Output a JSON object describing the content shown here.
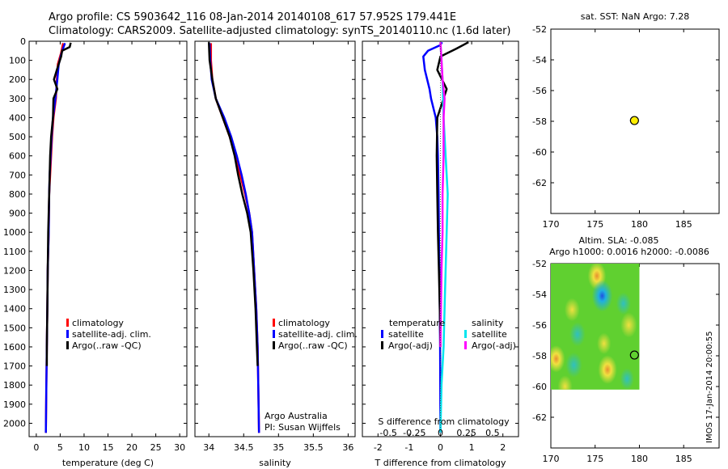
{
  "header": {
    "line1": "Argo profile: CS 5903642_116 08-Jan-2014 20140108_617 57.952S 179.441E",
    "line2": "Climatology: CARS2009. Satellite-adjusted climatology: synTS_20140110.nc (1.6d later)"
  },
  "credit": "IMOS 17-Jan-2014 20:00:55",
  "colors": {
    "climatology": "#ff0000",
    "satellite": "#0000ff",
    "argo": "#000000",
    "satellite_s": "#00e5ee",
    "argo_s": "#ff00ff"
  },
  "depth_ticks": [
    0,
    100,
    200,
    300,
    400,
    500,
    600,
    700,
    800,
    900,
    1000,
    1100,
    1200,
    1300,
    1400,
    1500,
    1600,
    1700,
    1800,
    1900,
    2000
  ],
  "chart_data": [
    {
      "type": "line",
      "id": "temperature",
      "xlabel": "temperature (deg C)",
      "xlim": [
        -1.5,
        31.5
      ],
      "ylim": [
        2070,
        0
      ],
      "xticks": [
        0,
        5,
        10,
        15,
        20,
        25,
        30
      ],
      "legend": [
        "climatology",
        "satellite-adj. clim.",
        "Argo(..raw -QC)"
      ],
      "series": [
        {
          "name": "climatology",
          "color": "#ff0000",
          "points": [
            [
              5.6,
              10
            ],
            [
              5.2,
              60
            ],
            [
              4.5,
              120
            ],
            [
              4.3,
              200
            ],
            [
              4.1,
              300
            ],
            [
              3.6,
              400
            ],
            [
              3.3,
              500
            ],
            [
              3.1,
              600
            ],
            [
              2.9,
              700
            ],
            [
              2.7,
              800
            ],
            [
              2.6,
              1000
            ],
            [
              2.4,
              1200
            ],
            [
              2.3,
              1400
            ],
            [
              2.2,
              1600
            ],
            [
              2.1,
              1800
            ],
            [
              2.0,
              2050
            ]
          ]
        },
        {
          "name": "satellite-adj. clim.",
          "color": "#0000ff",
          "points": [
            [
              6.0,
              10
            ],
            [
              5.3,
              60
            ],
            [
              4.7,
              120
            ],
            [
              4.4,
              200
            ],
            [
              4.0,
              300
            ],
            [
              3.5,
              400
            ],
            [
              3.2,
              500
            ],
            [
              3.0,
              600
            ],
            [
              2.8,
              700
            ],
            [
              2.7,
              800
            ],
            [
              2.6,
              1000
            ],
            [
              2.4,
              1200
            ],
            [
              2.3,
              1400
            ],
            [
              2.2,
              1600
            ],
            [
              2.1,
              1800
            ],
            [
              2.0,
              2050
            ]
          ]
        },
        {
          "name": "Argo(..raw -QC)",
          "color": "#000000",
          "points": [
            [
              7.2,
              8
            ],
            [
              7.0,
              30
            ],
            [
              5.4,
              50
            ],
            [
              5.2,
              80
            ],
            [
              4.3,
              150
            ],
            [
              3.7,
              200
            ],
            [
              4.4,
              250
            ],
            [
              3.6,
              300
            ],
            [
              3.5,
              400
            ],
            [
              3.1,
              500
            ],
            [
              2.9,
              600
            ],
            [
              2.8,
              700
            ],
            [
              2.7,
              800
            ],
            [
              2.5,
              1000
            ],
            [
              2.4,
              1200
            ],
            [
              2.3,
              1400
            ],
            [
              2.2,
              1600
            ],
            [
              2.2,
              1700
            ]
          ]
        }
      ]
    },
    {
      "type": "line",
      "id": "salinity",
      "xlabel": "salinity",
      "xlim": [
        33.8,
        36.1
      ],
      "ylim": [
        2070,
        0
      ],
      "xticks": [
        34,
        34.5,
        35,
        35.5,
        36
      ],
      "legend": [
        "climatology",
        "satellite-adj. clim.",
        "Argo(..raw -QC)"
      ],
      "annotation": [
        "Argo Australia",
        "PI: Susan Wijffels"
      ],
      "series": [
        {
          "name": "climatology",
          "color": "#ff0000",
          "points": [
            [
              34.03,
              10
            ],
            [
              34.03,
              100
            ],
            [
              34.05,
              200
            ],
            [
              34.1,
              300
            ],
            [
              34.2,
              400
            ],
            [
              34.3,
              500
            ],
            [
              34.38,
              600
            ],
            [
              34.45,
              700
            ],
            [
              34.52,
              800
            ],
            [
              34.58,
              900
            ],
            [
              34.62,
              1000
            ],
            [
              34.65,
              1200
            ],
            [
              34.68,
              1400
            ],
            [
              34.7,
              1600
            ],
            [
              34.71,
              1800
            ],
            [
              34.72,
              2050
            ]
          ]
        },
        {
          "name": "satellite-adj. clim.",
          "color": "#0000ff",
          "points": [
            [
              34.01,
              10
            ],
            [
              34.02,
              100
            ],
            [
              34.04,
              200
            ],
            [
              34.1,
              300
            ],
            [
              34.22,
              400
            ],
            [
              34.32,
              500
            ],
            [
              34.4,
              600
            ],
            [
              34.47,
              700
            ],
            [
              34.53,
              800
            ],
            [
              34.58,
              900
            ],
            [
              34.62,
              1000
            ],
            [
              34.65,
              1200
            ],
            [
              34.68,
              1400
            ],
            [
              34.7,
              1600
            ],
            [
              34.71,
              1800
            ],
            [
              34.72,
              2050
            ]
          ]
        },
        {
          "name": "Argo(..raw -QC)",
          "color": "#000000",
          "points": [
            [
              34.0,
              5
            ],
            [
              34.01,
              100
            ],
            [
              34.05,
              200
            ],
            [
              34.1,
              300
            ],
            [
              34.2,
              400
            ],
            [
              34.3,
              500
            ],
            [
              34.37,
              600
            ],
            [
              34.42,
              700
            ],
            [
              34.48,
              800
            ],
            [
              34.55,
              900
            ],
            [
              34.6,
              1000
            ],
            [
              34.64,
              1200
            ],
            [
              34.67,
              1400
            ],
            [
              34.69,
              1600
            ],
            [
              34.7,
              1700
            ]
          ]
        }
      ]
    },
    {
      "type": "line",
      "id": "difference",
      "xlabel": "T difference from climatology",
      "toplabel": "S difference from climatology",
      "xlim": [
        -2.5,
        2.5
      ],
      "ylim": [
        2070,
        0
      ],
      "xticks": [
        -2,
        -1,
        0,
        1,
        2
      ],
      "top_ticks": [
        -0.5,
        -0.25,
        0,
        0.25,
        0.5
      ],
      "legend_left_title": "temperature",
      "legend_right_title": "salinity",
      "legend": [
        "satellite",
        "Argo(-adj)",
        "satellite",
        "Argo(-adj)"
      ],
      "series": [
        {
          "name": "T satellite",
          "color": "#0000ff",
          "points": [
            [
              0.05,
              5
            ],
            [
              0.0,
              20
            ],
            [
              -0.4,
              50
            ],
            [
              -0.55,
              80
            ],
            [
              -0.5,
              150
            ],
            [
              -0.35,
              250
            ],
            [
              -0.3,
              300
            ],
            [
              -0.15,
              400
            ],
            [
              -0.1,
              500
            ],
            [
              -0.08,
              600
            ],
            [
              -0.06,
              800
            ],
            [
              -0.05,
              1000
            ],
            [
              -0.03,
              1200
            ],
            [
              -0.02,
              1400
            ],
            [
              -0.01,
              1600
            ],
            [
              0.0,
              2050
            ]
          ]
        },
        {
          "name": "T Argo(-adj)",
          "color": "#000000",
          "points": [
            [
              0.9,
              5
            ],
            [
              0.5,
              40
            ],
            [
              0.0,
              80
            ],
            [
              -0.1,
              150
            ],
            [
              0.2,
              250
            ],
            [
              0.1,
              300
            ],
            [
              -0.1,
              400
            ],
            [
              -0.12,
              600
            ],
            [
              -0.1,
              800
            ],
            [
              -0.08,
              1000
            ],
            [
              -0.05,
              1200
            ],
            [
              -0.02,
              1400
            ],
            [
              0.0,
              1600
            ]
          ]
        },
        {
          "name": "S satellite",
          "color": "#00e5ee",
          "points": [
            [
              0.0,
              5
            ],
            [
              0.01,
              100
            ],
            [
              0.02,
              200
            ],
            [
              0.03,
              400
            ],
            [
              0.05,
              600
            ],
            [
              0.07,
              800
            ],
            [
              0.06,
              1000
            ],
            [
              0.05,
              1200
            ],
            [
              0.04,
              1400
            ],
            [
              0.03,
              1600
            ],
            [
              0.01,
              1800
            ],
            [
              0.0,
              2050
            ]
          ]
        },
        {
          "name": "S Argo(-adj)",
          "color": "#ff00ff",
          "points": [
            [
              0.0,
              5
            ],
            [
              0.01,
              100
            ],
            [
              0.02,
              200
            ],
            [
              0.04,
              300
            ],
            [
              0.03,
              400
            ],
            [
              0.03,
              600
            ],
            [
              0.02,
              800
            ],
            [
              0.02,
              1000
            ],
            [
              0.01,
              1200
            ],
            [
              0.005,
              1400
            ],
            [
              0.0,
              1600
            ]
          ]
        }
      ]
    },
    {
      "type": "scatter",
      "id": "sst_map",
      "title": "sat. SST: NaN Argo: 7.28",
      "xlim": [
        170,
        189
      ],
      "ylim": [
        -64,
        -52
      ],
      "xticks": [
        170,
        175,
        180,
        185
      ],
      "yticks": [
        -52,
        -54,
        -56,
        -58,
        -60,
        -62
      ],
      "points": [
        {
          "lon": 179.44,
          "lat": -57.95,
          "color": "#ffee00"
        }
      ]
    },
    {
      "type": "heatmap",
      "id": "sla_map",
      "title1": "Altim. SLA: -0.085",
      "title2": "Argo h1000: 0.0016 h2000: -0.0086",
      "xlim": [
        170,
        189
      ],
      "ylim": [
        -64,
        -52
      ],
      "xticks": [
        170,
        175,
        180,
        185
      ],
      "yticks": [
        -52,
        -54,
        -56,
        -58,
        -60,
        -62
      ],
      "field_extent": {
        "lon": [
          170,
          180
        ],
        "lat": [
          -60.2,
          -52
        ]
      },
      "base_color": "#60d030",
      "blobs": [
        {
          "lon": 175.2,
          "lat": -52.8,
          "value": 1.2
        },
        {
          "lon": 172.4,
          "lat": -55.0,
          "value": 0.7
        },
        {
          "lon": 175.8,
          "lat": -54.1,
          "value": -1.6
        },
        {
          "lon": 178.2,
          "lat": -54.6,
          "value": -0.6
        },
        {
          "lon": 178.8,
          "lat": -56.0,
          "value": 0.9
        },
        {
          "lon": 173.0,
          "lat": -56.6,
          "value": -0.8
        },
        {
          "lon": 176.0,
          "lat": -57.2,
          "value": 0.5
        },
        {
          "lon": 170.6,
          "lat": -58.2,
          "value": 1.1
        },
        {
          "lon": 172.6,
          "lat": -58.6,
          "value": -0.9
        },
        {
          "lon": 176.4,
          "lat": -58.9,
          "value": 1.3
        },
        {
          "lon": 178.6,
          "lat": -59.5,
          "value": -0.5
        },
        {
          "lon": 171.6,
          "lat": -60.0,
          "value": 0.6
        }
      ],
      "points": [
        {
          "lon": 179.44,
          "lat": -57.95
        }
      ]
    }
  ]
}
